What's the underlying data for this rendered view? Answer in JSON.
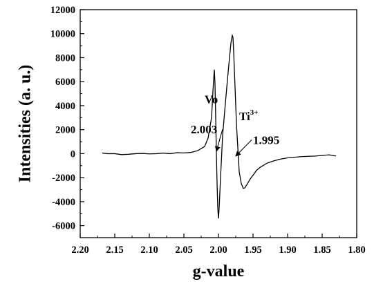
{
  "chart_data": {
    "type": "line",
    "xlabel": "g-value",
    "ylabel": "Intensities (a. u.)",
    "xlim": [
      2.2,
      1.8
    ],
    "x_reversed": true,
    "ylim": [
      -7000,
      12000
    ],
    "x_ticks": [
      "2.20",
      "2.15",
      "2.10",
      "2.05",
      "2.00",
      "1.95",
      "1.90",
      "1.85",
      "1.80"
    ],
    "x_tick_values": [
      2.2,
      2.15,
      2.1,
      2.05,
      2.0,
      1.95,
      1.9,
      1.85,
      1.8
    ],
    "y_ticks": [
      "-6000",
      "-4000",
      "-2000",
      "0",
      "2000",
      "4000",
      "6000",
      "8000",
      "10000",
      "12000"
    ],
    "y_tick_values": [
      -6000,
      -4000,
      -2000,
      0,
      2000,
      4000,
      6000,
      8000,
      10000,
      12000
    ],
    "grid": false,
    "series": [
      {
        "color": "#000000",
        "x": [
          2.168,
          2.16,
          2.15,
          2.14,
          2.13,
          2.12,
          2.11,
          2.1,
          2.09,
          2.08,
          2.07,
          2.06,
          2.05,
          2.04,
          2.03,
          2.02,
          2.015,
          2.01,
          2.008,
          2.006,
          2.005,
          2.004,
          2.003,
          2.002,
          2.001,
          2.0,
          1.999,
          1.997,
          1.994,
          1.99,
          1.986,
          1.982,
          1.98,
          1.979,
          1.978,
          1.976,
          1.974,
          1.97,
          1.967,
          1.964,
          1.962,
          1.958,
          1.954,
          1.95,
          1.945,
          1.94,
          1.93,
          1.92,
          1.91,
          1.9,
          1.89,
          1.88,
          1.87,
          1.86,
          1.85,
          1.84,
          1.83
        ],
        "y": [
          50,
          0,
          0,
          -80,
          -50,
          0,
          20,
          -20,
          0,
          50,
          0,
          80,
          60,
          100,
          250,
          600,
          1300,
          3000,
          5200,
          7000,
          5800,
          3000,
          0,
          -2500,
          -4500,
          -5400,
          -4500,
          -2000,
          1500,
          4200,
          6800,
          9200,
          9850,
          9700,
          8500,
          5500,
          2500,
          -1500,
          -2500,
          -2900,
          -2850,
          -2500,
          -2100,
          -1800,
          -1400,
          -1150,
          -800,
          -600,
          -450,
          -350,
          -300,
          -250,
          -220,
          -200,
          -150,
          -100,
          -200
        ]
      }
    ],
    "annotations": [
      {
        "text": "Vo",
        "x": 2.02,
        "y": 4200
      },
      {
        "text": "Ti",
        "sup": "3+",
        "x": 1.97,
        "y": 2800
      },
      {
        "text": "2.003",
        "x": 2.04,
        "y": 1700,
        "arrow_to": [
          2.003,
          200
        ]
      },
      {
        "text": "1.995",
        "x": 1.95,
        "y": 800,
        "arrow_to": [
          1.975,
          -200
        ]
      }
    ]
  }
}
